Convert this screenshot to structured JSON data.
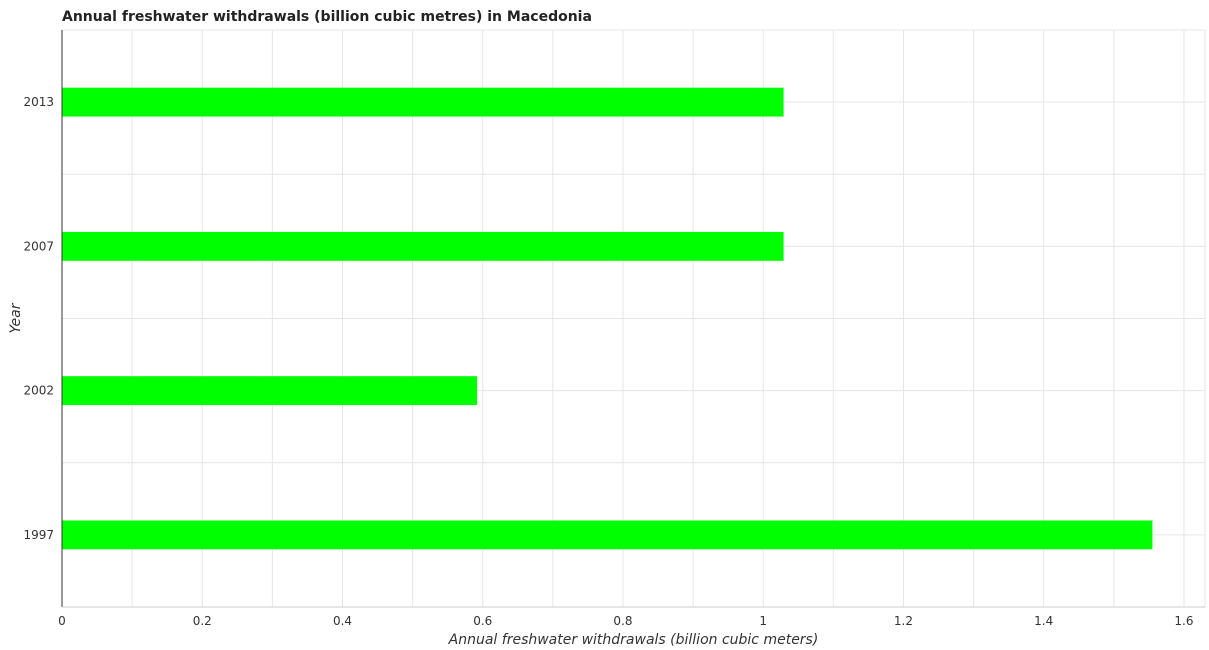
{
  "chart_data": {
    "type": "bar",
    "orientation": "horizontal",
    "title": "Annual freshwater withdrawals (billion cubic metres) in Macedonia",
    "xlabel": "Annual freshwater withdrawals (billion cubic meters)",
    "ylabel": "Year",
    "categories": [
      "1997",
      "2002",
      "2007",
      "2013"
    ],
    "values": [
      1.555,
      0.592,
      1.029,
      1.029
    ],
    "xlim": [
      0,
      1.63
    ],
    "xticks": [
      0,
      0.2,
      0.4,
      0.6,
      0.8,
      1.0,
      1.2,
      1.4,
      1.6
    ],
    "xtick_labels": [
      "0",
      "0.2",
      "0.4",
      "0.6",
      "0.8",
      "1",
      "1.2",
      "1.4",
      "1.6"
    ],
    "grid": true,
    "bar_color": "#00ff00"
  }
}
